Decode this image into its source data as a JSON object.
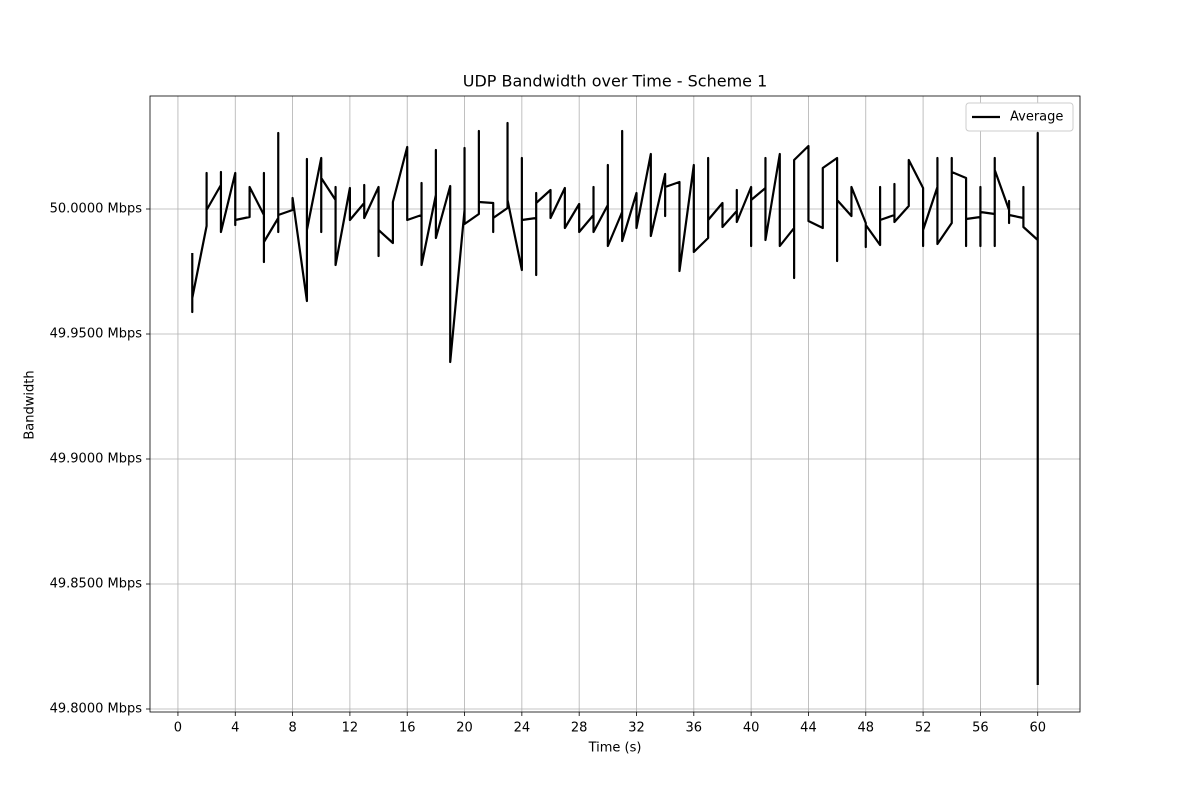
{
  "chart_data": {
    "type": "line",
    "title": "UDP Bandwidth over Time - Scheme 1",
    "x_label": "Time (s)",
    "y_label": "Bandwidth",
    "x": [
      1,
      1,
      1,
      2,
      2,
      2,
      3,
      3,
      3,
      4,
      4,
      4,
      5,
      5,
      6,
      6,
      6,
      6,
      7,
      7,
      7,
      7,
      8,
      8,
      9,
      9,
      9,
      10,
      10,
      10,
      11,
      11,
      11,
      12,
      12,
      13,
      13,
      13,
      14,
      14,
      14,
      15,
      15,
      16,
      16,
      17,
      17,
      17,
      18,
      18,
      18,
      19,
      19,
      20,
      20,
      20,
      21,
      21,
      21,
      22,
      22,
      22,
      23,
      23,
      23,
      24,
      24,
      24,
      25,
      25,
      25,
      25,
      26,
      26,
      27,
      27,
      28,
      28,
      29,
      29,
      29,
      30,
      30,
      30,
      31,
      31,
      31,
      32,
      32,
      33,
      33,
      34,
      34,
      34,
      35,
      35,
      36,
      36,
      37,
      37,
      37,
      38,
      38,
      39,
      39,
      39,
      40,
      40,
      40,
      41,
      41,
      41,
      42,
      42,
      43,
      43,
      43,
      44,
      44,
      45,
      45,
      46,
      46,
      46,
      47,
      47,
      48,
      48,
      48,
      49,
      49,
      49,
      50,
      50,
      50,
      51,
      51,
      52,
      52,
      52,
      53,
      53,
      53,
      54,
      54,
      54,
      55,
      55,
      55,
      56,
      56,
      56,
      56,
      57,
      57,
      57,
      57,
      58,
      58,
      58,
      58,
      59,
      59,
      59,
      60,
      60,
      60
    ],
    "series": [
      {
        "name": "Average",
        "color": "#000000",
        "values": [
          49.9824,
          49.9588,
          49.9644,
          49.9932,
          50.0144,
          49.9996,
          50.0096,
          50.0148,
          49.9908,
          50.0144,
          49.9936,
          49.9956,
          49.9968,
          50.0088,
          49.9976,
          50.0144,
          49.9788,
          49.9868,
          49.9964,
          50.0304,
          49.9908,
          49.9976,
          49.9996,
          50.0044,
          49.9632,
          50.02,
          49.9916,
          50.0204,
          49.9908,
          50.0124,
          50.0036,
          50.0088,
          49.9776,
          50.0084,
          49.9956,
          50.0024,
          50.0096,
          49.9964,
          50.0088,
          49.9812,
          49.9916,
          49.9864,
          50.0028,
          50.0248,
          49.9956,
          49.9976,
          50.0104,
          49.9776,
          50.0056,
          50.0236,
          49.9884,
          50.0092,
          49.9388,
          49.9996,
          50.0244,
          49.994,
          49.998,
          50.0312,
          50.0028,
          50.0024,
          49.9908,
          49.9964,
          50.0004,
          50.0344,
          50.0036,
          49.9756,
          50.0204,
          49.9956,
          49.9964,
          49.9736,
          50.0064,
          50.0024,
          50.0076,
          49.9964,
          50.0084,
          49.9924,
          50.002,
          49.9908,
          49.9976,
          50.0088,
          49.9908,
          50.0016,
          50.0176,
          49.9852,
          49.9988,
          50.0312,
          49.9872,
          50.0064,
          49.9924,
          50.022,
          49.9892,
          50.014,
          49.9972,
          50.0088,
          50.0108,
          49.9752,
          50.0176,
          49.9828,
          49.9884,
          50.0204,
          49.9956,
          50.0024,
          49.9928,
          49.9992,
          50.0076,
          49.9948,
          50.0088,
          49.9852,
          50.0036,
          50.0084,
          50.0204,
          49.9876,
          50.022,
          49.9852,
          49.9924,
          49.9724,
          50.0196,
          50.0252,
          49.9952,
          49.9924,
          50.0164,
          50.0204,
          49.9792,
          50.0036,
          49.9972,
          50.0088,
          49.9944,
          49.9848,
          49.9936,
          49.9856,
          50.0088,
          49.9956,
          49.9976,
          50.01,
          49.9948,
          50.0012,
          50.0196,
          50.0084,
          49.9852,
          49.9916,
          50.0088,
          50.0204,
          49.986,
          49.9944,
          50.0204,
          50.0148,
          50.0124,
          49.9852,
          49.996,
          49.9968,
          50.0088,
          49.9852,
          49.9988,
          49.998,
          50.0204,
          49.9852,
          50.0156,
          49.9996,
          50.0032,
          49.9944,
          49.9976,
          49.9964,
          50.0088,
          49.9928,
          49.9876,
          50.0304,
          49.8096
        ]
      }
    ],
    "xlim": [
      -1.95,
      62.95
    ],
    "ylim": [
      49.7988,
      50.0452
    ],
    "xticks": [
      0,
      4,
      8,
      12,
      16,
      20,
      24,
      28,
      32,
      36,
      40,
      44,
      48,
      52,
      56,
      60
    ],
    "yticks": [
      {
        "value": 49.8,
        "label": "49.8000 Mbps"
      },
      {
        "value": 49.85,
        "label": "49.8500 Mbps"
      },
      {
        "value": 49.9,
        "label": "49.9000 Mbps"
      },
      {
        "value": 49.95,
        "label": "49.9500 Mbps"
      },
      {
        "value": 50.0,
        "label": "50.0000 Mbps"
      }
    ],
    "grid": true,
    "legend": "upper-right"
  }
}
